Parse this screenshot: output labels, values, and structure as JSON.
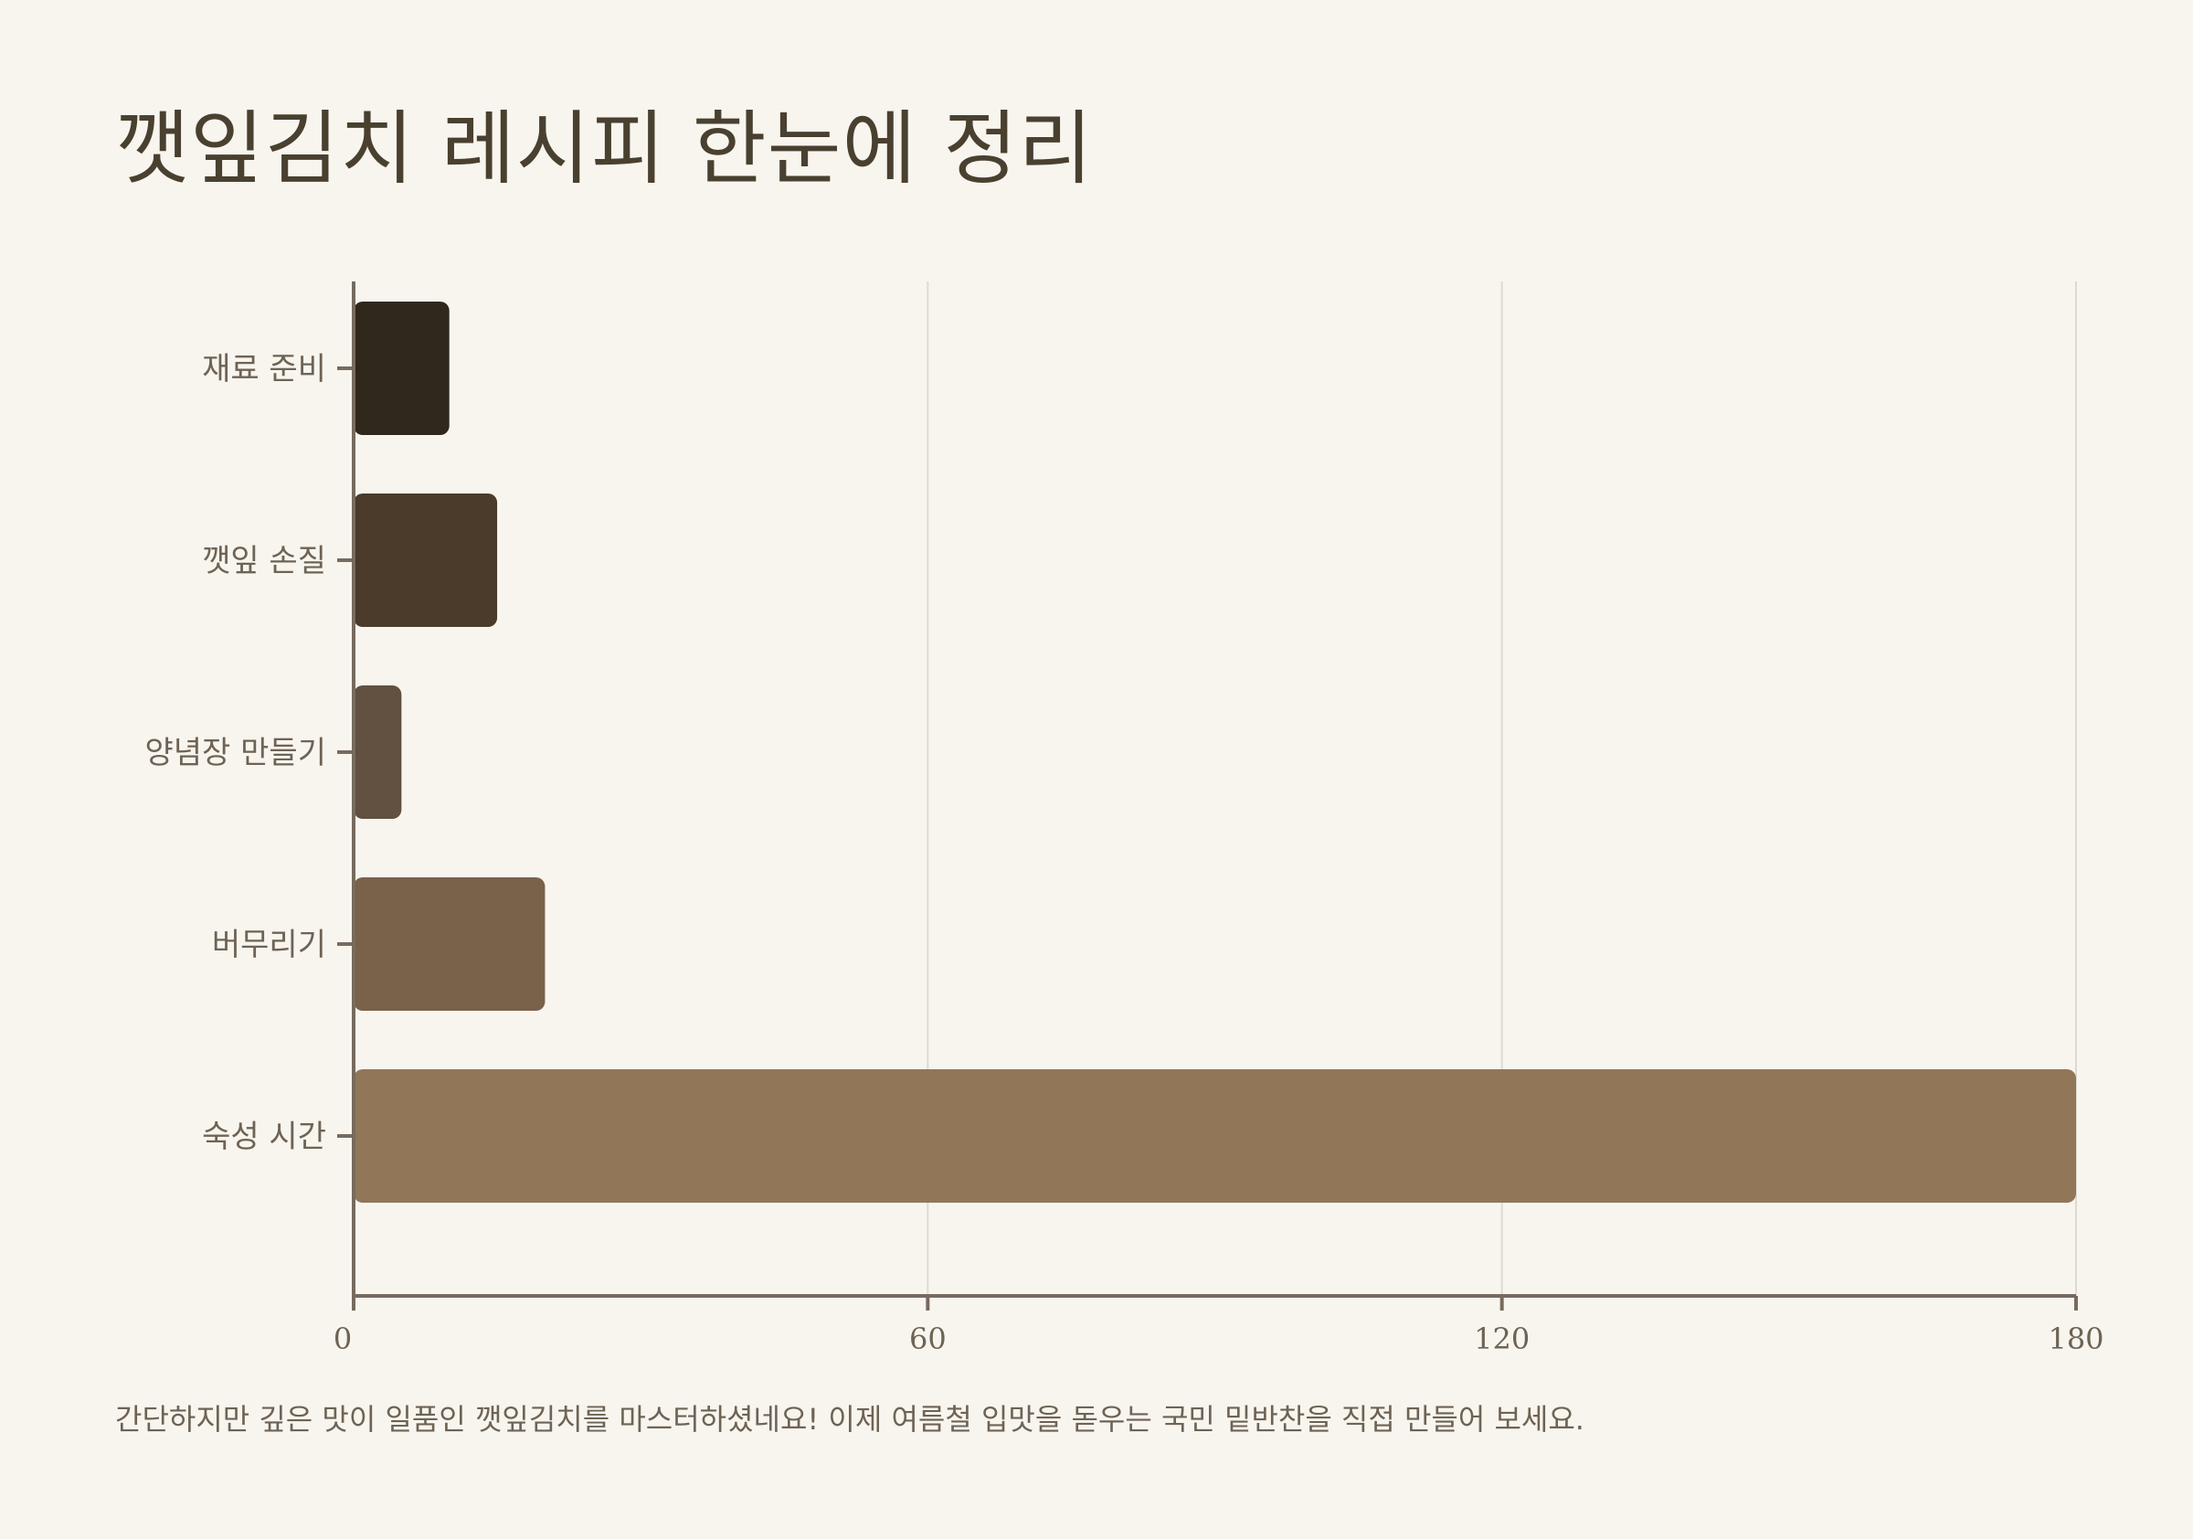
{
  "title": "깻잎김치 레시피 한눈에 정리",
  "caption": "간단하지만 깊은 맛이 일품인 깻잎김치를 마스터하셨네요! 이제 여름철 입맛을 돋우는 국민 밑반찬을 직접 만들어 보세요.",
  "chart_data": {
    "type": "bar",
    "orientation": "horizontal",
    "title": "깻잎김치 레시피 한눈에 정리",
    "categories": [
      "재료 준비",
      "깻잎 손질",
      "양념장 만들기",
      "버무리기",
      "숙성 시간"
    ],
    "values": [
      10,
      15,
      5,
      20,
      180
    ],
    "xlim": [
      0,
      180
    ],
    "xticks": [
      "0",
      "60",
      "120",
      "180"
    ],
    "grid": "vertical",
    "legend": "none",
    "colors": [
      "#30271d",
      "#4a3b2a",
      "#625040",
      "#79614a",
      "#917658"
    ],
    "axis_color": "#776b5e",
    "grid_color": "#dedad2"
  }
}
